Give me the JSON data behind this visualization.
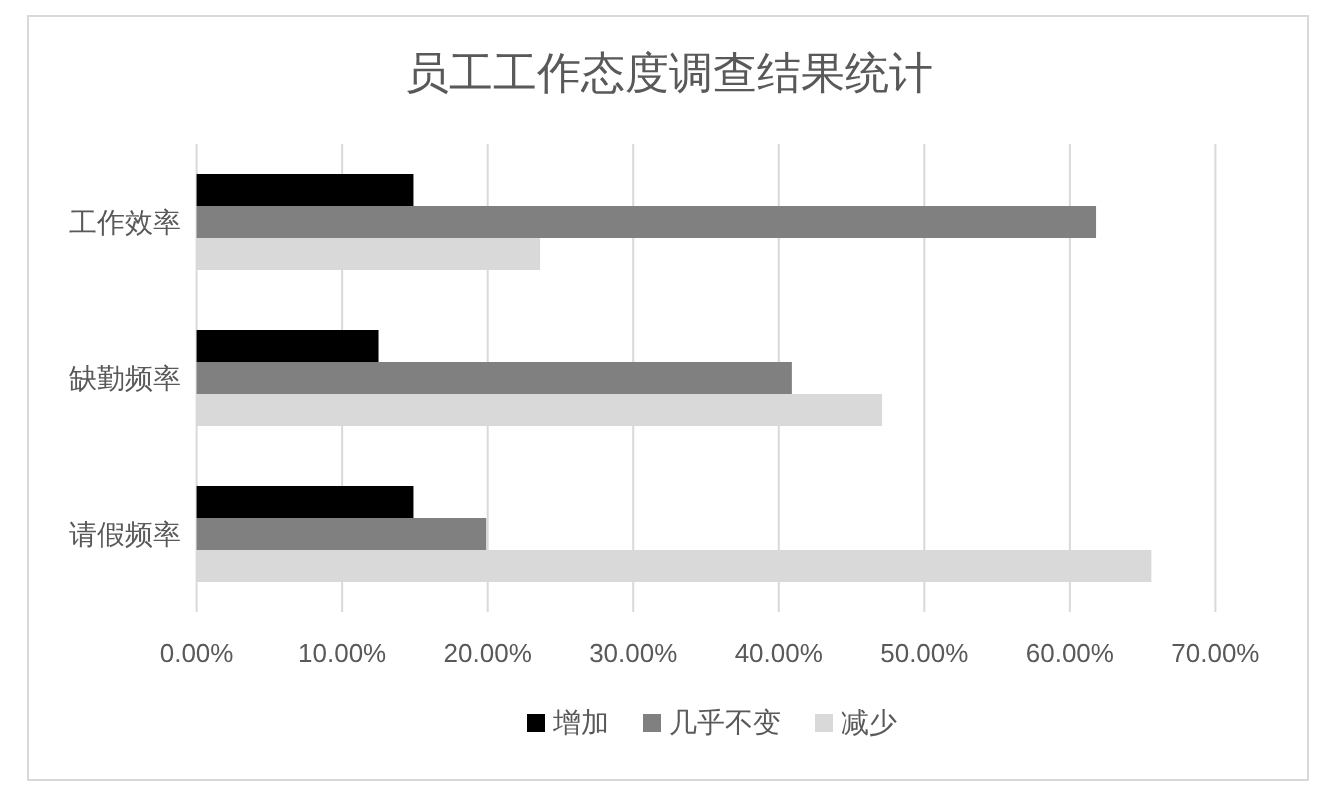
{
  "chart_data": {
    "type": "bar",
    "orientation": "horizontal",
    "title": "员工工作态度调查结果统计",
    "categories": [
      "工作效率",
      "缺勤频率",
      "请假频率"
    ],
    "series": [
      {
        "name": "增加",
        "color": "#000000",
        "values": [
          14.9,
          12.5,
          14.9
        ]
      },
      {
        "name": "几乎不变",
        "color": "#808080",
        "values": [
          61.8,
          40.9,
          19.9
        ]
      },
      {
        "name": "减少",
        "color": "#d9d9d9",
        "values": [
          23.6,
          47.1,
          65.6
        ]
      }
    ],
    "xlim": [
      0,
      70
    ],
    "xticks": [
      {
        "value": 0,
        "label": "0.00%"
      },
      {
        "value": 10,
        "label": "10.00%"
      },
      {
        "value": 20,
        "label": "20.00%"
      },
      {
        "value": 30,
        "label": "30.00%"
      },
      {
        "value": 40,
        "label": "40.00%"
      },
      {
        "value": 50,
        "label": "50.00%"
      },
      {
        "value": 60,
        "label": "60.00%"
      },
      {
        "value": 70,
        "label": "70.00%"
      }
    ],
    "grid": "x",
    "legend": "bottom"
  }
}
